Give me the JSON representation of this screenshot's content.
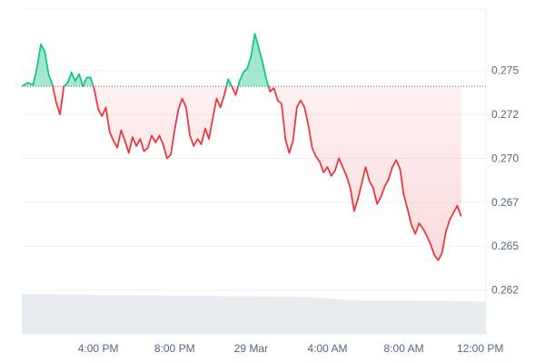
{
  "chart_data": {
    "type": "area",
    "title": "",
    "xlabel": "",
    "ylabel": "",
    "baseline": 0.2741,
    "ylim": [
      0.26,
      0.2785
    ],
    "x_range_hours": [
      0,
      24.3
    ],
    "grid": true,
    "colors": {
      "up": "#16c784",
      "down": "#ea3943",
      "grid": "#eff2f5",
      "baseline": "#58667e",
      "volume": "#e8ebef",
      "axis_text": "#58667e"
    },
    "y_ticks": [
      {
        "value": 0.2625,
        "label": "0.262"
      },
      {
        "value": 0.265,
        "label": "0.265"
      },
      {
        "value": 0.2675,
        "label": "0.267"
      },
      {
        "value": 0.27,
        "label": "0.270"
      },
      {
        "value": 0.2725,
        "label": "0.272"
      },
      {
        "value": 0.275,
        "label": "0.275"
      }
    ],
    "x_ticks": [
      {
        "hour": 4,
        "label": "4:00 PM"
      },
      {
        "hour": 8,
        "label": "8:00 PM"
      },
      {
        "hour": 12,
        "label": "29 Mar"
      },
      {
        "hour": 16,
        "label": "4:00 AM"
      },
      {
        "hour": 20,
        "label": "8:00 AM"
      },
      {
        "hour": 24,
        "label": "12:00 PM"
      }
    ],
    "series": [
      {
        "values": [
          [
            0.0,
            0.2741
          ],
          [
            0.3,
            0.2743
          ],
          [
            0.6,
            0.2742
          ],
          [
            0.8,
            0.2752
          ],
          [
            1.0,
            0.2765
          ],
          [
            1.2,
            0.2761
          ],
          [
            1.4,
            0.2748
          ],
          [
            1.6,
            0.2742
          ],
          [
            1.8,
            0.2732
          ],
          [
            2.0,
            0.2725
          ],
          [
            2.2,
            0.2741
          ],
          [
            2.4,
            0.2743
          ],
          [
            2.6,
            0.2749
          ],
          [
            2.8,
            0.2744
          ],
          [
            3.0,
            0.2748
          ],
          [
            3.2,
            0.2741
          ],
          [
            3.4,
            0.2746
          ],
          [
            3.6,
            0.2746
          ],
          [
            3.8,
            0.2739
          ],
          [
            4.0,
            0.2728
          ],
          [
            4.2,
            0.2724
          ],
          [
            4.4,
            0.2729
          ],
          [
            4.6,
            0.2715
          ],
          [
            4.8,
            0.271
          ],
          [
            5.0,
            0.2706
          ],
          [
            5.2,
            0.2716
          ],
          [
            5.4,
            0.271
          ],
          [
            5.6,
            0.2703
          ],
          [
            5.8,
            0.2712
          ],
          [
            6.0,
            0.2707
          ],
          [
            6.2,
            0.2711
          ],
          [
            6.4,
            0.2704
          ],
          [
            6.6,
            0.2706
          ],
          [
            6.8,
            0.2713
          ],
          [
            7.0,
            0.2709
          ],
          [
            7.2,
            0.2713
          ],
          [
            7.4,
            0.2708
          ],
          [
            7.6,
            0.27
          ],
          [
            7.8,
            0.2702
          ],
          [
            8.0,
            0.2716
          ],
          [
            8.2,
            0.2728
          ],
          [
            8.4,
            0.2734
          ],
          [
            8.6,
            0.2729
          ],
          [
            8.8,
            0.2713
          ],
          [
            9.0,
            0.2707
          ],
          [
            9.2,
            0.2711
          ],
          [
            9.4,
            0.2708
          ],
          [
            9.6,
            0.2717
          ],
          [
            9.8,
            0.2711
          ],
          [
            10.0,
            0.2723
          ],
          [
            10.2,
            0.2734
          ],
          [
            10.4,
            0.2729
          ],
          [
            10.6,
            0.2736
          ],
          [
            10.8,
            0.2745
          ],
          [
            11.0,
            0.2741
          ],
          [
            11.2,
            0.2736
          ],
          [
            11.4,
            0.2744
          ],
          [
            11.6,
            0.2749
          ],
          [
            11.8,
            0.2751
          ],
          [
            12.0,
            0.2758
          ],
          [
            12.2,
            0.2771
          ],
          [
            12.4,
            0.2763
          ],
          [
            12.6,
            0.2755
          ],
          [
            12.8,
            0.2745
          ],
          [
            13.0,
            0.2738
          ],
          [
            13.2,
            0.274
          ],
          [
            13.4,
            0.2733
          ],
          [
            13.6,
            0.2731
          ],
          [
            13.8,
            0.2711
          ],
          [
            14.0,
            0.2703
          ],
          [
            14.2,
            0.271
          ],
          [
            14.4,
            0.2729
          ],
          [
            14.6,
            0.2733
          ],
          [
            14.8,
            0.2729
          ],
          [
            15.0,
            0.2719
          ],
          [
            15.2,
            0.2706
          ],
          [
            15.4,
            0.2701
          ],
          [
            15.6,
            0.2698
          ],
          [
            15.8,
            0.2692
          ],
          [
            16.0,
            0.2695
          ],
          [
            16.2,
            0.269
          ],
          [
            16.4,
            0.2693
          ],
          [
            16.6,
            0.27
          ],
          [
            16.8,
            0.2695
          ],
          [
            17.0,
            0.269
          ],
          [
            17.2,
            0.2683
          ],
          [
            17.4,
            0.267
          ],
          [
            17.6,
            0.2677
          ],
          [
            17.8,
            0.2686
          ],
          [
            18.0,
            0.2695
          ],
          [
            18.2,
            0.2687
          ],
          [
            18.4,
            0.2683
          ],
          [
            18.6,
            0.2674
          ],
          [
            18.8,
            0.2678
          ],
          [
            19.0,
            0.2684
          ],
          [
            19.2,
            0.2688
          ],
          [
            19.4,
            0.2695
          ],
          [
            19.6,
            0.2699
          ],
          [
            19.8,
            0.2694
          ],
          [
            20.0,
            0.2679
          ],
          [
            20.2,
            0.2671
          ],
          [
            20.4,
            0.2662
          ],
          [
            20.6,
            0.2657
          ],
          [
            20.8,
            0.2663
          ],
          [
            21.0,
            0.266
          ],
          [
            21.2,
            0.2656
          ],
          [
            21.4,
            0.2651
          ],
          [
            21.6,
            0.2645
          ],
          [
            21.8,
            0.2642
          ],
          [
            22.0,
            0.2646
          ],
          [
            22.2,
            0.2658
          ],
          [
            22.4,
            0.2665
          ],
          [
            22.6,
            0.2669
          ],
          [
            22.8,
            0.2673
          ],
          [
            23.0,
            0.2667
          ]
        ]
      }
    ],
    "volume": {
      "ylim": [
        0,
        1
      ],
      "values": [
        [
          0.0,
          0.88
        ],
        [
          1.0,
          0.88
        ],
        [
          2.0,
          0.87
        ],
        [
          3.0,
          0.87
        ],
        [
          4.0,
          0.86
        ],
        [
          5.0,
          0.86
        ],
        [
          6.0,
          0.85
        ],
        [
          7.0,
          0.85
        ],
        [
          8.0,
          0.84
        ],
        [
          9.0,
          0.84
        ],
        [
          10.0,
          0.84
        ],
        [
          11.0,
          0.83
        ],
        [
          12.0,
          0.83
        ],
        [
          13.0,
          0.82
        ],
        [
          14.0,
          0.82
        ],
        [
          15.0,
          0.81
        ],
        [
          16.0,
          0.79
        ],
        [
          17.0,
          0.75
        ],
        [
          18.0,
          0.74
        ],
        [
          19.0,
          0.74
        ],
        [
          20.0,
          0.74
        ],
        [
          21.0,
          0.73
        ],
        [
          22.0,
          0.73
        ],
        [
          23.0,
          0.72
        ],
        [
          24.3,
          0.71
        ]
      ]
    }
  }
}
